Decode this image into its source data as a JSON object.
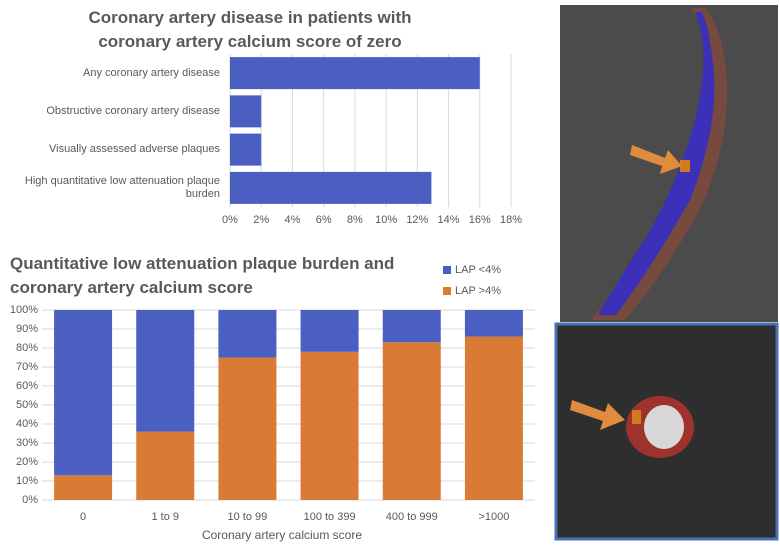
{
  "chart_data": [
    {
      "type": "hbar",
      "title": "Coronary artery disease in patients with coronary artery calcium score of zero",
      "categories": [
        "Any coronary artery disease",
        "Obstructive coronary artery disease",
        "Visually assessed adverse plaques",
        "High quantitative low attenuation plaque burden"
      ],
      "values": [
        16,
        2,
        2,
        12.9
      ],
      "color": "#4a5fc1",
      "xlim": [
        0,
        18
      ],
      "xticks": [
        {
          "value": 0,
          "label": "0%"
        },
        {
          "value": 2,
          "label": "2%"
        },
        {
          "value": 4,
          "label": "4%"
        },
        {
          "value": 6,
          "label": "6%"
        },
        {
          "value": 8,
          "label": "8%"
        },
        {
          "value": 10,
          "label": "10%"
        },
        {
          "value": 12,
          "label": "12%"
        },
        {
          "value": 14,
          "label": "14%"
        },
        {
          "value": 16,
          "label": "16%"
        },
        {
          "value": 18,
          "label": "18%"
        }
      ],
      "grid": true
    },
    {
      "type": "stacked_bar",
      "title": "Quantitative low attenuation plaque burden and coronary artery calcium score",
      "x_label": "Coronary artery calcium score",
      "categories": [
        "0",
        "1 to 9",
        "10 to 99",
        "100 to 399",
        "400 to 999",
        ">1000"
      ],
      "series": [
        {
          "name": "LAP <4%",
          "color": "#4a5fc1",
          "values": [
            87,
            64,
            25,
            22,
            17,
            14
          ]
        },
        {
          "name": "LAP >4%",
          "color": "#d97b35",
          "values": [
            13,
            36,
            75,
            78,
            83,
            86
          ]
        }
      ],
      "ylim": [
        0,
        100
      ],
      "yticks": [
        {
          "value": 0,
          "label": "0%"
        },
        {
          "value": 10,
          "label": "10%"
        },
        {
          "value": 20,
          "label": "20%"
        },
        {
          "value": 30,
          "label": "30%"
        },
        {
          "value": 40,
          "label": "40%"
        },
        {
          "value": 50,
          "label": "50%"
        },
        {
          "value": 60,
          "label": "60%"
        },
        {
          "value": 70,
          "label": "70%"
        },
        {
          "value": 80,
          "label": "80%"
        },
        {
          "value": 90,
          "label": "90%"
        },
        {
          "value": 100,
          "label": "100%"
        }
      ],
      "grid": true
    }
  ]
}
